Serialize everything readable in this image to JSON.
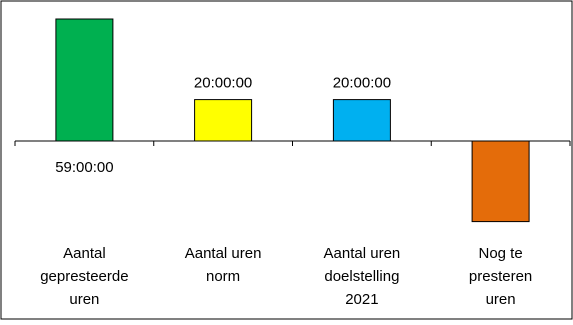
{
  "colors": {
    "background": "#ffffff",
    "border": "#000000",
    "bars": [
      "#00b050",
      "#ffff00",
      "#00b0f0",
      "#e46c0a"
    ]
  },
  "chart_data": {
    "type": "bar",
    "categories": [
      [
        "Aantal",
        "gepresteerde",
        "uren"
      ],
      [
        "Aantal uren",
        "norm"
      ],
      [
        "Aantal uren",
        "doelstelling",
        "2021"
      ],
      [
        "Nog te",
        "presteren",
        "uren"
      ]
    ],
    "values": [
      59,
      20,
      20,
      -39
    ],
    "data_labels": [
      "59:00:00",
      "20:00:00",
      "20:00:00",
      ""
    ],
    "unit": "hours",
    "ylim": [
      -39,
      59
    ],
    "grid": false,
    "legend": "none",
    "axis": {
      "y_visible": false,
      "category_ticks": true
    }
  }
}
